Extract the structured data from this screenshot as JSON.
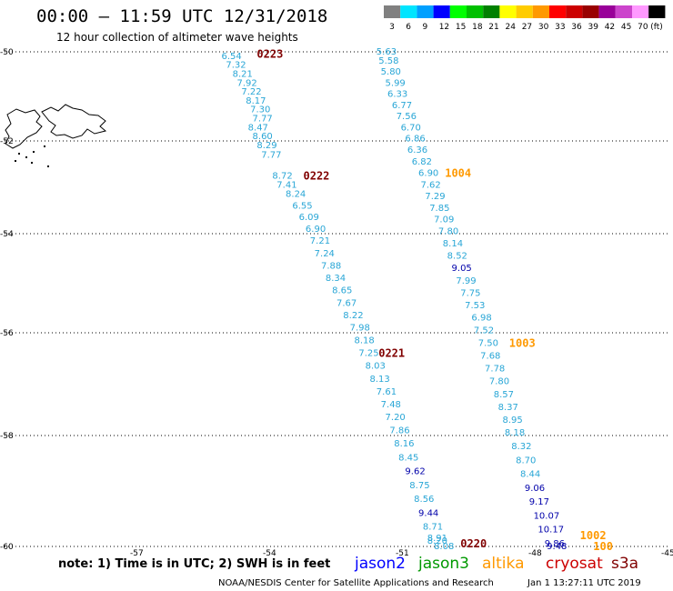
{
  "title": "00:00 – 11:59 UTC 12/31/2018",
  "subtitle": "12 hour collection of altimeter wave heights",
  "legend": {
    "unit": "(ft)",
    "bins": [
      {
        "label": "3",
        "color": "#808080"
      },
      {
        "label": "6",
        "color": "#00e5ff"
      },
      {
        "label": "9",
        "color": "#00a0ff"
      },
      {
        "label": "12",
        "color": "#0000ff"
      },
      {
        "label": "15",
        "color": "#00ff00"
      },
      {
        "label": "18",
        "color": "#00c000"
      },
      {
        "label": "21",
        "color": "#008000"
      },
      {
        "label": "24",
        "color": "#ffff00"
      },
      {
        "label": "27",
        "color": "#ffcc00"
      },
      {
        "label": "30",
        "color": "#ff9900"
      },
      {
        "label": "33",
        "color": "#ff0000"
      },
      {
        "label": "36",
        "color": "#cc0000"
      },
      {
        "label": "39",
        "color": "#990000"
      },
      {
        "label": "42",
        "color": "#990099"
      },
      {
        "label": "45",
        "color": "#cc44cc"
      },
      {
        "label": "70",
        "color": "#ff99ff"
      },
      {
        "label": "",
        "color": "#000000"
      }
    ]
  },
  "axes": {
    "lat_labels": [
      "-50",
      "-52",
      "-54",
      "-56",
      "-58",
      "-60"
    ],
    "lon_labels": [
      "-57",
      "-54",
      "-51",
      "-48",
      "-45"
    ]
  },
  "tracks": [
    {
      "color": "#29a6d6",
      "points": [
        {
          "lat": -50.1,
          "lon": -55.1,
          "v": "6.54"
        },
        {
          "lat": -50.3,
          "lon": -55.0,
          "v": "7.32"
        },
        {
          "lat": -50.5,
          "lon": -54.85,
          "v": "8.21"
        },
        {
          "lat": -50.7,
          "lon": -54.75,
          "v": "7.92"
        },
        {
          "lat": -50.9,
          "lon": -54.65,
          "v": "7.22"
        },
        {
          "lat": -51.1,
          "lon": -54.55,
          "v": "8.17"
        },
        {
          "lat": -51.3,
          "lon": -54.45,
          "v": "7.30"
        },
        {
          "lat": -51.5,
          "lon": -54.4,
          "v": "7.77"
        },
        {
          "lat": -51.7,
          "lon": -54.5,
          "v": "8.47"
        },
        {
          "lat": -51.9,
          "lon": -54.4,
          "v": "8.60"
        },
        {
          "lat": -52.1,
          "lon": -54.3,
          "v": "8.29"
        },
        {
          "lat": -52.3,
          "lon": -54.2,
          "v": "7.77"
        },
        {
          "lat": -52.75,
          "lon": -53.95,
          "v": "8.72"
        },
        {
          "lat": -52.95,
          "lon": -53.85,
          "v": "7.41"
        },
        {
          "lat": -53.15,
          "lon": -53.65,
          "v": "8.24"
        },
        {
          "lat": -53.4,
          "lon": -53.5,
          "v": "6.55"
        },
        {
          "lat": -53.65,
          "lon": -53.35,
          "v": "6.09"
        },
        {
          "lat": -53.9,
          "lon": -53.2,
          "v": "6.90"
        },
        {
          "lat": -54.15,
          "lon": -53.1,
          "v": "7.21"
        },
        {
          "lat": -54.4,
          "lon": -53.0,
          "v": "7.24"
        },
        {
          "lat": -54.65,
          "lon": -52.85,
          "v": "7.88"
        },
        {
          "lat": -54.9,
          "lon": -52.75,
          "v": "8.34"
        },
        {
          "lat": -55.15,
          "lon": -52.6,
          "v": "8.65"
        },
        {
          "lat": -55.4,
          "lon": -52.5,
          "v": "7.67"
        },
        {
          "lat": -55.65,
          "lon": -52.35,
          "v": "8.22"
        },
        {
          "lat": -55.9,
          "lon": -52.2,
          "v": "7.98"
        },
        {
          "lat": -56.15,
          "lon": -52.1,
          "v": "8.18"
        },
        {
          "lat": -56.4,
          "lon": -52.0,
          "v": "7.25"
        },
        {
          "lat": -56.65,
          "lon": -51.85,
          "v": "8.03"
        },
        {
          "lat": -56.9,
          "lon": -51.75,
          "v": "8.13"
        },
        {
          "lat": -57.15,
          "lon": -51.6,
          "v": "7.61"
        },
        {
          "lat": -57.4,
          "lon": -51.5,
          "v": "7.48"
        },
        {
          "lat": -57.65,
          "lon": -51.4,
          "v": "7.20"
        },
        {
          "lat": -57.9,
          "lon": -51.3,
          "v": "7.86"
        },
        {
          "lat": -58.15,
          "lon": -51.2,
          "v": "8.16"
        },
        {
          "lat": -58.4,
          "lon": -51.1,
          "v": "8.45"
        },
        {
          "lat": -58.65,
          "lon": -50.95,
          "v": "9.62",
          "c": "#0000aa"
        },
        {
          "lat": -58.9,
          "lon": -50.85,
          "v": "8.75"
        },
        {
          "lat": -59.15,
          "lon": -50.75,
          "v": "8.56"
        },
        {
          "lat": -59.4,
          "lon": -50.65,
          "v": "9.44",
          "c": "#0000aa"
        },
        {
          "lat": -59.65,
          "lon": -50.55,
          "v": "8.71"
        },
        {
          "lat": -59.85,
          "lon": -50.45,
          "v": "8.91"
        },
        {
          "lat": -59.9,
          "lon": -50.45,
          "v": "8.20"
        },
        {
          "lat": -60.0,
          "lon": -50.3,
          "v": "8.08"
        }
      ]
    },
    {
      "color": "#29a6d6",
      "points": [
        {
          "lat": -49.95,
          "lon": -51.6,
          "v": "5.63"
        },
        {
          "lat": -50.2,
          "lon": -51.55,
          "v": "5.58"
        },
        {
          "lat": -50.45,
          "lon": -51.5,
          "v": "5.80"
        },
        {
          "lat": -50.7,
          "lon": -51.4,
          "v": "5.99"
        },
        {
          "lat": -50.95,
          "lon": -51.35,
          "v": "6.33"
        },
        {
          "lat": -51.2,
          "lon": -51.25,
          "v": "6.77"
        },
        {
          "lat": -51.45,
          "lon": -51.15,
          "v": "7.56"
        },
        {
          "lat": -51.7,
          "lon": -51.05,
          "v": "6.70"
        },
        {
          "lat": -51.95,
          "lon": -50.95,
          "v": "6.86"
        },
        {
          "lat": -52.2,
          "lon": -50.9,
          "v": "6.36"
        },
        {
          "lat": -52.45,
          "lon": -50.8,
          "v": "6.82"
        },
        {
          "lat": -52.7,
          "lon": -50.65,
          "v": "6.90"
        },
        {
          "lat": -52.95,
          "lon": -50.6,
          "v": "7.62"
        },
        {
          "lat": -53.2,
          "lon": -50.5,
          "v": "7.29"
        },
        {
          "lat": -53.45,
          "lon": -50.4,
          "v": "7.85"
        },
        {
          "lat": -53.7,
          "lon": -50.3,
          "v": "7.09"
        },
        {
          "lat": -53.95,
          "lon": -50.2,
          "v": "7.80"
        },
        {
          "lat": -54.2,
          "lon": -50.1,
          "v": "8.14"
        },
        {
          "lat": -54.45,
          "lon": -50.0,
          "v": "8.52"
        },
        {
          "lat": -54.7,
          "lon": -49.9,
          "v": "9.05",
          "c": "#0000aa"
        },
        {
          "lat": -54.95,
          "lon": -49.8,
          "v": "7.99"
        },
        {
          "lat": -55.2,
          "lon": -49.7,
          "v": "7.75"
        },
        {
          "lat": -55.45,
          "lon": -49.6,
          "v": "7.53"
        },
        {
          "lat": -55.7,
          "lon": -49.45,
          "v": "6.98"
        },
        {
          "lat": -55.95,
          "lon": -49.4,
          "v": "7.52"
        },
        {
          "lat": -56.2,
          "lon": -49.3,
          "v": "7.50"
        },
        {
          "lat": -56.45,
          "lon": -49.25,
          "v": "7.68"
        },
        {
          "lat": -56.7,
          "lon": -49.15,
          "v": "7.78"
        },
        {
          "lat": -56.95,
          "lon": -49.05,
          "v": "7.80"
        },
        {
          "lat": -57.2,
          "lon": -48.95,
          "v": "8.57"
        },
        {
          "lat": -57.45,
          "lon": -48.85,
          "v": "8.37"
        },
        {
          "lat": -57.7,
          "lon": -48.75,
          "v": "8.95"
        },
        {
          "lat": -57.95,
          "lon": -48.7,
          "v": "8.18"
        },
        {
          "lat": -58.2,
          "lon": -48.55,
          "v": "8.32"
        },
        {
          "lat": -58.45,
          "lon": -48.45,
          "v": "8.70"
        },
        {
          "lat": -58.7,
          "lon": -48.35,
          "v": "8.44"
        },
        {
          "lat": -58.95,
          "lon": -48.25,
          "v": "9.06",
          "c": "#0000aa"
        },
        {
          "lat": -59.2,
          "lon": -48.15,
          "v": "9.17",
          "c": "#0000aa"
        },
        {
          "lat": -59.45,
          "lon": -48.05,
          "v": "10.07",
          "c": "#0000aa"
        },
        {
          "lat": -59.7,
          "lon": -47.95,
          "v": "10.17",
          "c": "#0000aa"
        },
        {
          "lat": -59.95,
          "lon": -47.8,
          "v": "9.86",
          "c": "#0000aa"
        },
        {
          "lat": -60.2,
          "lon": -47.75,
          "v": "9.48",
          "c": "#0000aa"
        }
      ]
    }
  ],
  "pass_labels": [
    {
      "text": "0223",
      "lat": -50.05,
      "lon": -54.3,
      "color": "#800000"
    },
    {
      "text": "0222",
      "lat": -52.75,
      "lon": -53.25,
      "color": "#800000"
    },
    {
      "text": "0221",
      "lat": -56.4,
      "lon": -51.55,
      "color": "#800000"
    },
    {
      "text": "0220",
      "lat": -59.95,
      "lon": -49.7,
      "color": "#800000"
    },
    {
      "text": "1004",
      "lat": -52.7,
      "lon": -50.05,
      "color": "#ff9900"
    },
    {
      "text": "1003",
      "lat": -56.2,
      "lon": -48.6,
      "color": "#ff9900"
    },
    {
      "text": "1002",
      "lat": -59.8,
      "lon": -47.0,
      "color": "#ff9900"
    },
    {
      "text": "100",
      "lat": -60.15,
      "lon": -46.7,
      "color": "#ff9900"
    }
  ],
  "footer": {
    "note": "note:  1) Time is in UTC;  2) SWH is in feet",
    "satellites": [
      {
        "name": "jason2",
        "color": "#0000ff"
      },
      {
        "name": "jason3",
        "color": "#009900"
      },
      {
        "name": "altika",
        "color": "#ff9900"
      },
      {
        "name": "cryosat",
        "color": "#cc0000"
      },
      {
        "name": "s3a",
        "color": "#800000"
      }
    ],
    "credit": "NOAA/NESDIS Center for Satellite Applications and Research",
    "timestamp": "Jan  1 13:27:11 UTC 2019"
  }
}
